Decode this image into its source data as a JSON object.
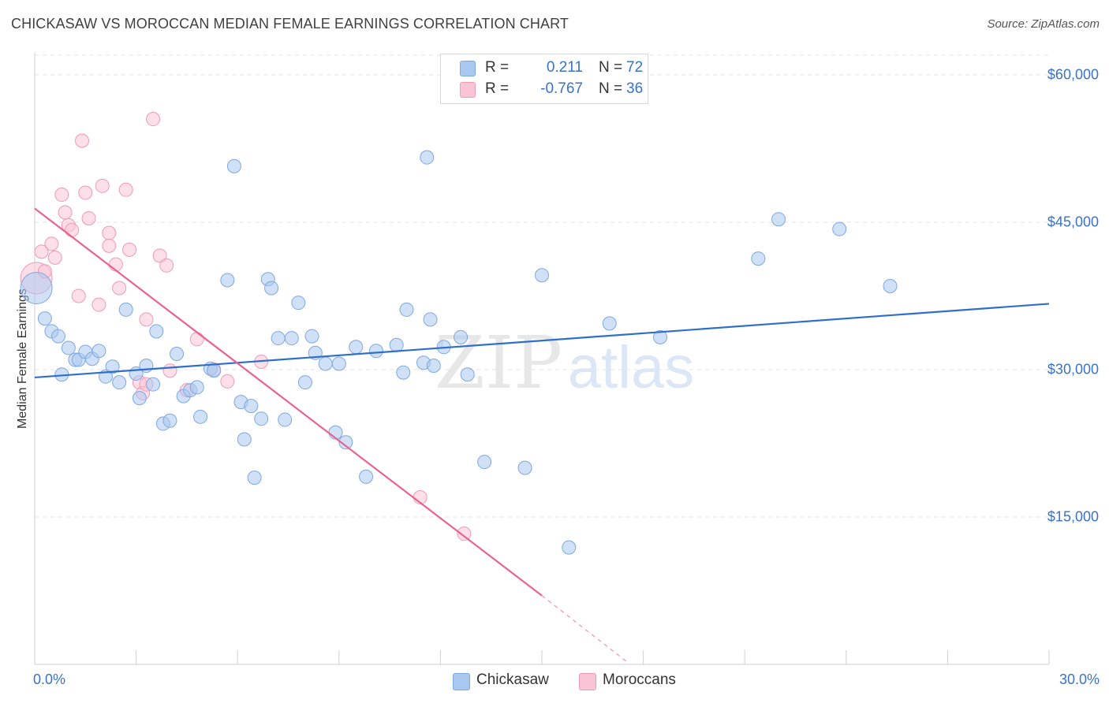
{
  "title": "CHICKASAW VS MOROCCAN MEDIAN FEMALE EARNINGS CORRELATION CHART",
  "source": "Source: ZipAtlas.com",
  "watermark": {
    "zip": "ZIP",
    "atlas": "atlas"
  },
  "legend": {
    "rows": [
      {
        "r_label": "R =",
        "r_value": "0.211",
        "n_label": "N =",
        "n_value": "72",
        "color": "#a9c8f0",
        "border": "#7ea8e0"
      },
      {
        "r_label": "R =",
        "r_value": "-0.767",
        "n_label": "N =",
        "n_value": "36",
        "color": "#f9c5d6",
        "border": "#ef9ab6"
      }
    ]
  },
  "bottom_legend": {
    "items": [
      "Chickasaw",
      "Moroccans"
    ]
  },
  "chart_data": {
    "type": "scatter",
    "title": "CHICKASAW VS MOROCCAN MEDIAN FEMALE EARNINGS CORRELATION CHART",
    "xlabel": "",
    "ylabel": "Median Female Earnings",
    "xlim": [
      0,
      30
    ],
    "ylim": [
      0,
      62000
    ],
    "x_tick_labels": [
      "0.0%",
      "30.0%"
    ],
    "y_ticks": [
      15000,
      30000,
      45000,
      60000
    ],
    "y_tick_labels": [
      "$15,000",
      "$30,000",
      "$45,000",
      "$60,000"
    ],
    "grid": true,
    "legend_position": "top-center",
    "series": [
      {
        "name": "Chickasaw",
        "color": "#a9c8f0",
        "stroke": "#7ea8e0",
        "line_color": "#2f6fcc",
        "trend": {
          "x": [
            0,
            30
          ],
          "y": [
            29200,
            36700
          ]
        },
        "points": [
          [
            0.05,
            38300
          ],
          [
            0.3,
            35200
          ],
          [
            0.5,
            33900
          ],
          [
            0.7,
            33400
          ],
          [
            0.8,
            29500
          ],
          [
            1.0,
            32200
          ],
          [
            1.2,
            31000
          ],
          [
            1.3,
            31000
          ],
          [
            1.5,
            31800
          ],
          [
            1.7,
            31100
          ],
          [
            1.9,
            31900
          ],
          [
            2.1,
            29300
          ],
          [
            2.3,
            30300
          ],
          [
            2.5,
            28700
          ],
          [
            2.7,
            36100
          ],
          [
            3.0,
            29600
          ],
          [
            3.1,
            27100
          ],
          [
            3.3,
            30400
          ],
          [
            3.5,
            28500
          ],
          [
            3.6,
            33900
          ],
          [
            3.8,
            24500
          ],
          [
            4.0,
            24800
          ],
          [
            4.2,
            31600
          ],
          [
            4.4,
            27300
          ],
          [
            4.6,
            27900
          ],
          [
            4.8,
            28200
          ],
          [
            4.9,
            25200
          ],
          [
            5.2,
            30100
          ],
          [
            5.3,
            29900
          ],
          [
            5.7,
            39100
          ],
          [
            5.9,
            50700
          ],
          [
            6.1,
            26700
          ],
          [
            6.2,
            22900
          ],
          [
            6.4,
            26300
          ],
          [
            6.5,
            19000
          ],
          [
            6.7,
            25000
          ],
          [
            6.9,
            39200
          ],
          [
            7.0,
            38300
          ],
          [
            7.2,
            33200
          ],
          [
            7.4,
            24900
          ],
          [
            7.6,
            33200
          ],
          [
            7.8,
            36800
          ],
          [
            8.0,
            28700
          ],
          [
            8.2,
            33400
          ],
          [
            8.3,
            31700
          ],
          [
            8.6,
            30600
          ],
          [
            8.9,
            23600
          ],
          [
            9.0,
            30600
          ],
          [
            9.2,
            22600
          ],
          [
            9.5,
            32300
          ],
          [
            9.8,
            19100
          ],
          [
            10.1,
            31900
          ],
          [
            10.7,
            32500
          ],
          [
            10.9,
            29700
          ],
          [
            11.0,
            36100
          ],
          [
            11.5,
            30700
          ],
          [
            11.8,
            30400
          ],
          [
            11.7,
            35100
          ],
          [
            11.6,
            51600
          ],
          [
            12.1,
            32300
          ],
          [
            12.6,
            33300
          ],
          [
            12.8,
            29500
          ],
          [
            13.3,
            20600
          ],
          [
            14.5,
            20000
          ],
          [
            15.0,
            39600
          ],
          [
            15.8,
            11900
          ],
          [
            17.0,
            34700
          ],
          [
            18.5,
            33300
          ],
          [
            21.4,
            41300
          ],
          [
            22.0,
            45300
          ],
          [
            23.8,
            44300
          ],
          [
            25.3,
            38500
          ]
        ]
      },
      {
        "name": "Moroccans",
        "color": "#f9c5d6",
        "stroke": "#ef9ab6",
        "line_color": "#e8648e",
        "trend": {
          "x": [
            0,
            15
          ],
          "y": [
            46400,
            7000
          ]
        },
        "trend_dashed": {
          "x": [
            15,
            17.5
          ],
          "y": [
            7000,
            300
          ]
        },
        "points": [
          [
            0.05,
            39300
          ],
          [
            0.2,
            42000
          ],
          [
            0.3,
            40000
          ],
          [
            0.5,
            42800
          ],
          [
            0.6,
            41400
          ],
          [
            0.8,
            47800
          ],
          [
            0.9,
            46000
          ],
          [
            1.0,
            44700
          ],
          [
            1.1,
            44200
          ],
          [
            1.3,
            37500
          ],
          [
            1.4,
            53300
          ],
          [
            1.5,
            48000
          ],
          [
            1.6,
            45400
          ],
          [
            1.9,
            36600
          ],
          [
            2.0,
            48700
          ],
          [
            2.2,
            43900
          ],
          [
            2.2,
            42600
          ],
          [
            2.4,
            40700
          ],
          [
            2.5,
            38300
          ],
          [
            2.7,
            48300
          ],
          [
            2.8,
            42200
          ],
          [
            3.1,
            28700
          ],
          [
            3.2,
            27600
          ],
          [
            3.3,
            28500
          ],
          [
            3.3,
            35100
          ],
          [
            3.5,
            55500
          ],
          [
            3.7,
            41600
          ],
          [
            3.9,
            40600
          ],
          [
            4.0,
            29900
          ],
          [
            4.5,
            27900
          ],
          [
            4.8,
            33100
          ],
          [
            5.3,
            30000
          ],
          [
            5.7,
            28800
          ],
          [
            6.7,
            30800
          ],
          [
            11.4,
            17000
          ],
          [
            12.7,
            13300
          ]
        ]
      }
    ]
  }
}
